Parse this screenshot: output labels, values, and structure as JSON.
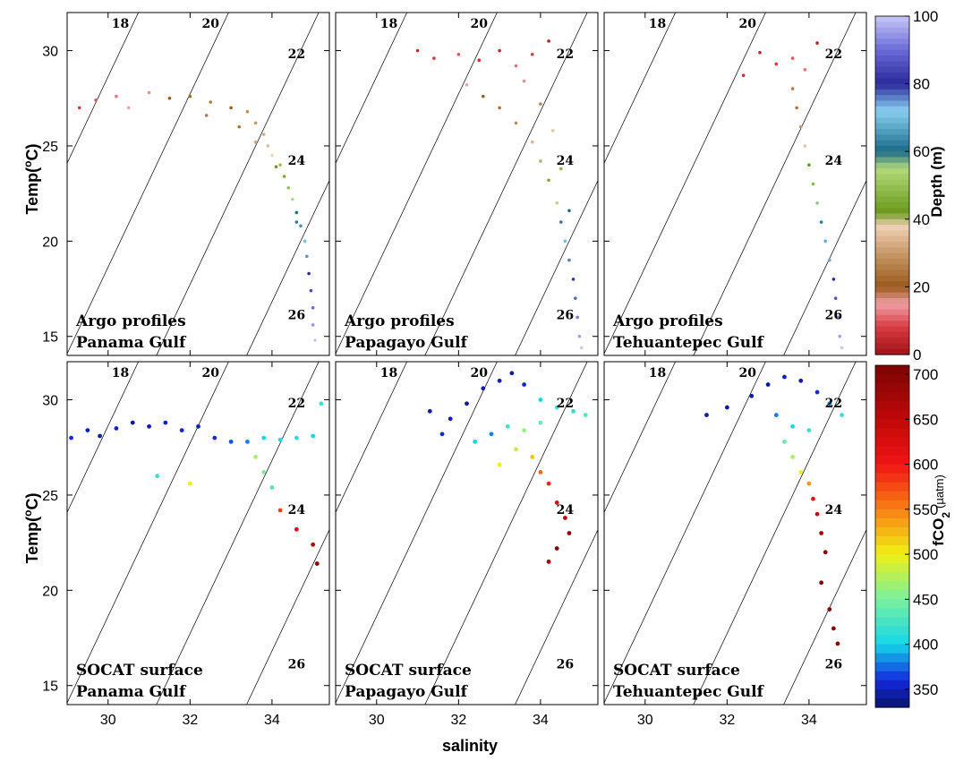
{
  "figure": {
    "ylabel": "Temp(",
    "ylabel_sup": "o",
    "ylabel_end": "C)",
    "xlabel": "salinity",
    "depth_label": "Depth (m)",
    "fco2_label": "fCO",
    "fco2_sub": "2",
    "fco2_unit": "(µatm)"
  },
  "chart_data": {
    "type": "scatter",
    "xlim": [
      29,
      35.4
    ],
    "ylim": [
      14,
      32
    ],
    "xticks": [
      30,
      32,
      34
    ],
    "yticks": [
      15,
      20,
      25,
      30
    ],
    "isopycnals": [
      {
        "label": "18",
        "value": 18
      },
      {
        "label": "20",
        "value": 20
      },
      {
        "label": "22",
        "value": 22
      },
      {
        "label": "24",
        "value": 24
      },
      {
        "label": "26",
        "value": 26
      }
    ],
    "colorbars": [
      {
        "name": "Depth (m)",
        "min": 0,
        "max": 100,
        "ticks": [
          "0",
          "20",
          "40",
          "60",
          "80",
          "100"
        ]
      },
      {
        "name": "fCO2",
        "min": 330,
        "max": 710,
        "ticks": [
          "350",
          "400",
          "450",
          "500",
          "550",
          "600",
          "650",
          "700"
        ]
      }
    ],
    "panels": [
      {
        "title1": "Argo profiles",
        "title2": "Panama Gulf",
        "variable": "depth",
        "points": [
          [
            29.3,
            27.0,
            8
          ],
          [
            29.7,
            27.4,
            10
          ],
          [
            30.2,
            27.6,
            12
          ],
          [
            30.5,
            27.0,
            15
          ],
          [
            31.0,
            27.8,
            14
          ],
          [
            31.5,
            27.5,
            20
          ],
          [
            32.0,
            27.6,
            22
          ],
          [
            32.5,
            27.3,
            25
          ],
          [
            33.0,
            27.0,
            20
          ],
          [
            33.4,
            26.8,
            28
          ],
          [
            33.6,
            26.2,
            30
          ],
          [
            33.8,
            25.6,
            33
          ],
          [
            33.9,
            25.0,
            35
          ],
          [
            34.0,
            24.5,
            38
          ],
          [
            34.2,
            24.0,
            40
          ],
          [
            34.3,
            23.4,
            45
          ],
          [
            34.4,
            22.8,
            50
          ],
          [
            34.5,
            22.2,
            55
          ],
          [
            34.6,
            21.5,
            60
          ],
          [
            34.7,
            20.8,
            65
          ],
          [
            34.8,
            20.0,
            70
          ],
          [
            34.85,
            19.2,
            75
          ],
          [
            34.9,
            18.3,
            80
          ],
          [
            34.95,
            17.4,
            85
          ],
          [
            35.0,
            16.5,
            90
          ],
          [
            35.0,
            15.6,
            95
          ],
          [
            35.05,
            14.8,
            100
          ],
          [
            32.4,
            26.6,
            18
          ],
          [
            33.2,
            26.0,
            24
          ],
          [
            33.6,
            25.2,
            32
          ],
          [
            34.1,
            23.9,
            42
          ],
          [
            34.6,
            21.0,
            62
          ]
        ]
      },
      {
        "title1": "Argo profiles",
        "title2": "Papagayo Gulf",
        "variable": "depth",
        "points": [
          [
            31.0,
            30.0,
            5
          ],
          [
            31.4,
            29.6,
            8
          ],
          [
            32.0,
            29.8,
            10
          ],
          [
            32.5,
            29.5,
            6
          ],
          [
            33.0,
            30.0,
            4
          ],
          [
            33.4,
            29.2,
            12
          ],
          [
            33.8,
            29.8,
            8
          ],
          [
            34.2,
            30.5,
            3
          ],
          [
            32.2,
            28.2,
            15
          ],
          [
            32.6,
            27.6,
            20
          ],
          [
            33.0,
            27.0,
            24
          ],
          [
            33.4,
            26.2,
            28
          ],
          [
            33.8,
            25.2,
            34
          ],
          [
            34.0,
            24.2,
            40
          ],
          [
            34.2,
            23.2,
            45
          ],
          [
            34.4,
            22.0,
            55
          ],
          [
            34.5,
            21.0,
            62
          ],
          [
            34.6,
            20.0,
            70
          ],
          [
            34.7,
            19.0,
            76
          ],
          [
            34.8,
            18.0,
            82
          ],
          [
            34.85,
            17.0,
            88
          ],
          [
            34.9,
            16.0,
            92
          ],
          [
            34.95,
            15.0,
            96
          ],
          [
            35.0,
            14.4,
            100
          ],
          [
            33.6,
            28.4,
            16
          ],
          [
            34.0,
            27.2,
            26
          ],
          [
            34.3,
            25.8,
            36
          ],
          [
            34.5,
            23.8,
            48
          ],
          [
            34.7,
            21.6,
            60
          ]
        ]
      },
      {
        "title1": "Argo profiles",
        "title2": "Tehuantepec Gulf",
        "variable": "depth",
        "points": [
          [
            32.4,
            28.7,
            6
          ],
          [
            32.8,
            29.9,
            4
          ],
          [
            33.2,
            29.3,
            8
          ],
          [
            33.6,
            29.6,
            10
          ],
          [
            33.9,
            29.0,
            12
          ],
          [
            34.2,
            30.4,
            3
          ],
          [
            33.6,
            28.0,
            18
          ],
          [
            33.7,
            27.0,
            24
          ],
          [
            33.8,
            26.0,
            30
          ],
          [
            33.9,
            25.0,
            36
          ],
          [
            34.0,
            24.0,
            42
          ],
          [
            34.1,
            23.0,
            48
          ],
          [
            34.2,
            22.0,
            56
          ],
          [
            34.3,
            21.0,
            62
          ],
          [
            34.4,
            20.0,
            68
          ],
          [
            34.5,
            19.0,
            74
          ],
          [
            34.6,
            18.0,
            80
          ],
          [
            34.65,
            17.0,
            86
          ],
          [
            34.7,
            16.0,
            92
          ],
          [
            34.75,
            15.0,
            96
          ],
          [
            34.8,
            14.4,
            100
          ]
        ]
      },
      {
        "title1": "SOCAT surface",
        "title2": "Panama Gulf",
        "variable": "fco2",
        "points": [
          [
            29.1,
            28.0,
            360
          ],
          [
            29.5,
            28.4,
            350
          ],
          [
            29.8,
            28.1,
            345
          ],
          [
            30.2,
            28.5,
            350
          ],
          [
            30.6,
            28.8,
            340
          ],
          [
            31.0,
            28.6,
            345
          ],
          [
            31.4,
            28.8,
            350
          ],
          [
            31.8,
            28.4,
            355
          ],
          [
            32.2,
            28.6,
            350
          ],
          [
            32.6,
            28.0,
            360
          ],
          [
            33.0,
            27.8,
            370
          ],
          [
            33.4,
            27.8,
            380
          ],
          [
            33.8,
            28.0,
            400
          ],
          [
            34.2,
            27.9,
            405
          ],
          [
            34.6,
            28.0,
            410
          ],
          [
            35.0,
            28.1,
            400
          ],
          [
            35.2,
            29.8,
            420
          ],
          [
            33.6,
            27.0,
            470
          ],
          [
            33.8,
            26.2,
            450
          ],
          [
            34.0,
            25.4,
            430
          ],
          [
            34.2,
            24.2,
            580
          ],
          [
            34.6,
            23.2,
            620
          ],
          [
            35.0,
            22.4,
            660
          ],
          [
            35.1,
            21.4,
            700
          ],
          [
            32.0,
            25.6,
            500
          ],
          [
            31.2,
            26.0,
            420
          ]
        ]
      },
      {
        "title1": "SOCAT surface",
        "title2": "Papagayo Gulf",
        "variable": "fco2",
        "points": [
          [
            31.3,
            29.4,
            345
          ],
          [
            31.8,
            29.0,
            350
          ],
          [
            32.2,
            29.8,
            340
          ],
          [
            32.6,
            30.6,
            345
          ],
          [
            33.0,
            31.0,
            350
          ],
          [
            33.3,
            31.4,
            345
          ],
          [
            33.6,
            30.8,
            355
          ],
          [
            34.0,
            30.0,
            400
          ],
          [
            34.4,
            29.6,
            420
          ],
          [
            34.8,
            29.4,
            410
          ],
          [
            35.1,
            29.2,
            430
          ],
          [
            32.8,
            28.2,
            380
          ],
          [
            33.2,
            28.6,
            420
          ],
          [
            33.6,
            28.4,
            460
          ],
          [
            34.0,
            28.8,
            440
          ],
          [
            33.4,
            27.4,
            480
          ],
          [
            33.8,
            27.0,
            520
          ],
          [
            34.0,
            26.2,
            560
          ],
          [
            34.2,
            25.6,
            590
          ],
          [
            34.4,
            24.6,
            620
          ],
          [
            34.6,
            23.8,
            660
          ],
          [
            34.7,
            23.0,
            690
          ],
          [
            34.4,
            22.2,
            700
          ],
          [
            34.2,
            21.5,
            680
          ],
          [
            33.0,
            26.6,
            500
          ],
          [
            32.4,
            27.8,
            400
          ],
          [
            31.6,
            28.2,
            360
          ]
        ]
      },
      {
        "title1": "SOCAT surface",
        "title2": "Tehuantepec Gulf",
        "variable": "fco2",
        "points": [
          [
            31.5,
            29.2,
            345
          ],
          [
            32.0,
            29.6,
            340
          ],
          [
            32.6,
            30.2,
            345
          ],
          [
            33.0,
            30.8,
            340
          ],
          [
            33.4,
            31.2,
            350
          ],
          [
            33.8,
            31.0,
            345
          ],
          [
            34.2,
            30.4,
            360
          ],
          [
            34.5,
            29.8,
            380
          ],
          [
            34.8,
            29.2,
            420
          ],
          [
            33.2,
            29.2,
            380
          ],
          [
            33.6,
            28.6,
            400
          ],
          [
            34.0,
            28.4,
            420
          ],
          [
            33.4,
            27.8,
            440
          ],
          [
            33.6,
            27.0,
            470
          ],
          [
            33.8,
            26.2,
            500
          ],
          [
            34.0,
            25.6,
            540
          ],
          [
            34.1,
            24.8,
            600
          ],
          [
            34.2,
            24.0,
            640
          ],
          [
            34.3,
            23.0,
            670
          ],
          [
            34.4,
            22.0,
            690
          ],
          [
            34.3,
            20.4,
            700
          ],
          [
            34.5,
            19.0,
            700
          ],
          [
            34.6,
            18.0,
            700
          ],
          [
            34.7,
            17.2,
            700
          ]
        ]
      }
    ]
  }
}
